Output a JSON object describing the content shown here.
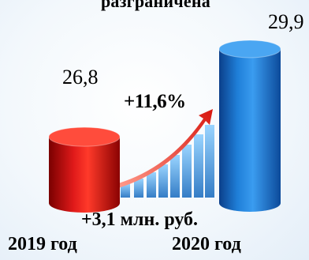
{
  "chart_data": {
    "type": "bar",
    "title": "разграничена",
    "categories": [
      "2019 год",
      "2020 год"
    ],
    "values": [
      26.8,
      29.9
    ],
    "value_labels": [
      "26,8",
      "29,9"
    ],
    "colors": [
      "#d40f0f",
      "#1a73c8"
    ],
    "growth_percent": "+11,6%",
    "growth_absolute": "+3,1 млн. руб."
  }
}
